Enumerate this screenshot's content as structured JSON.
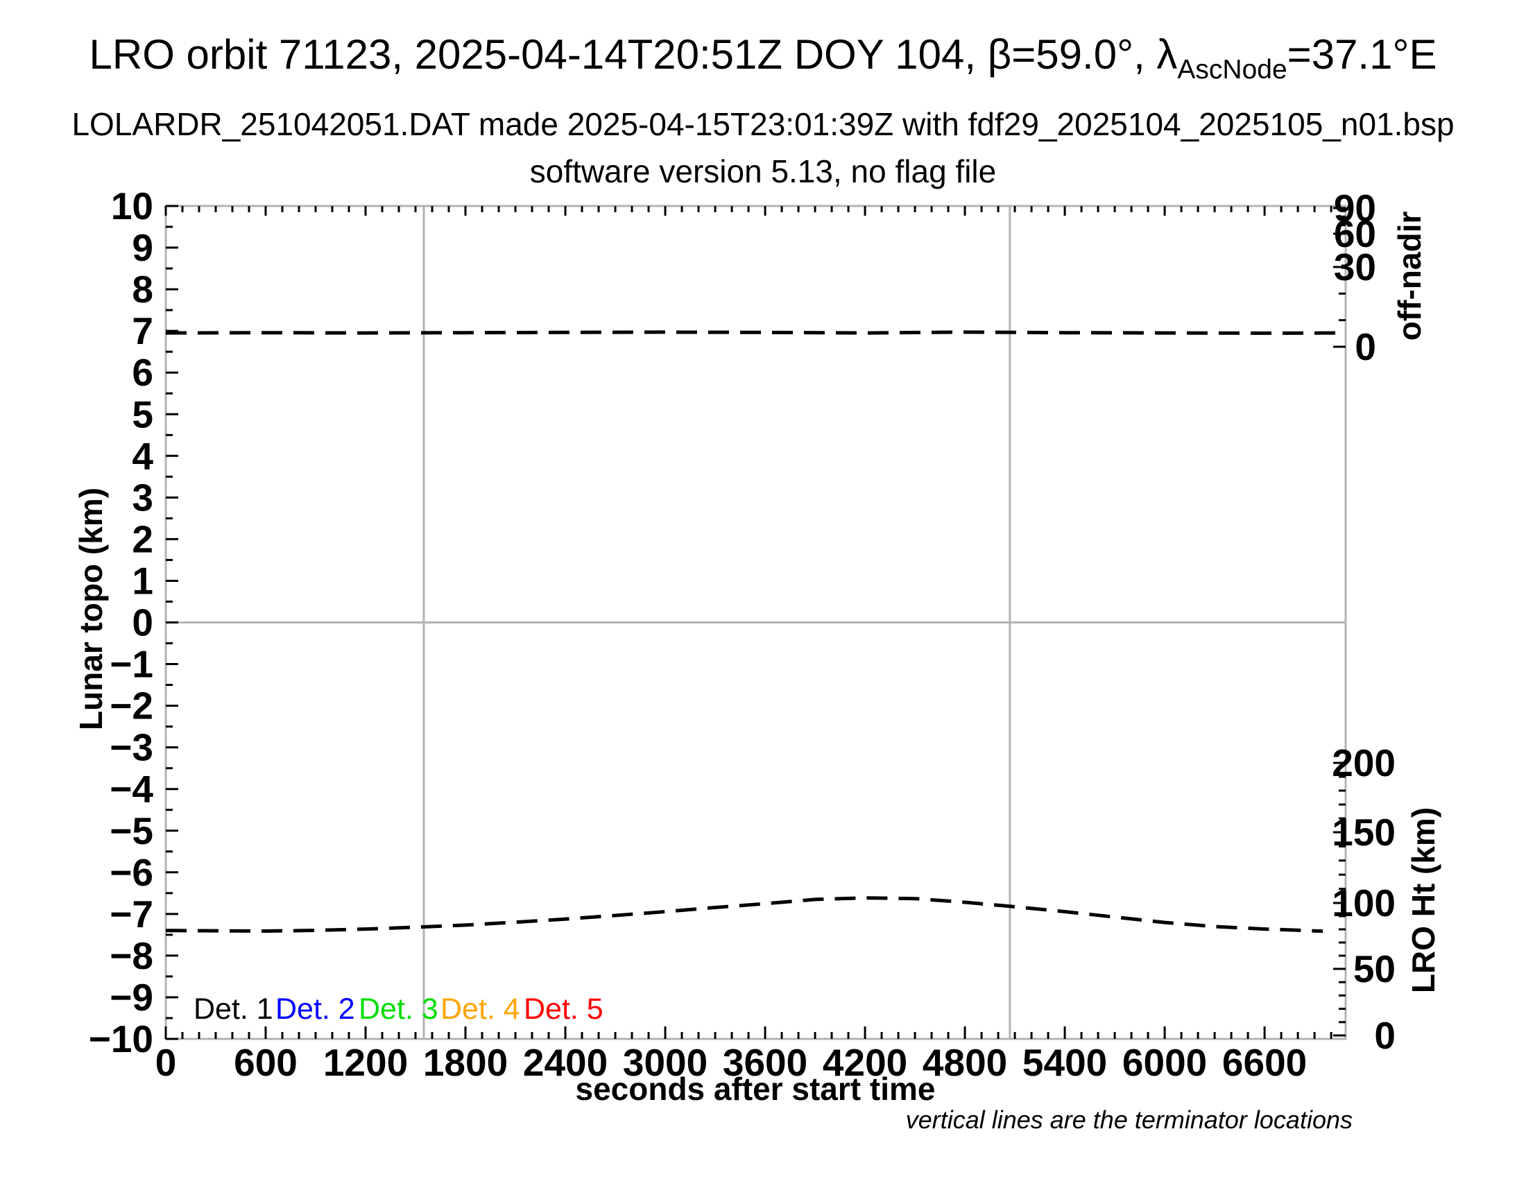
{
  "title": {
    "part1": "LRO orbit 71123, 2025-04-14T20:51Z DOY 104, β=59.0°, λ",
    "subscript": "AscNode",
    "part2": "=37.1°E"
  },
  "subtitle1": "LOLARDR_251042051.DAT made 2025-04-15T23:01:39Z with fdf29_2025104_2025105_n01.bsp",
  "subtitle2": "software version 5.13, no flag file",
  "chart_data": {
    "type": "line",
    "x_axis": {
      "label": "seconds after start time",
      "range": [
        0,
        7087
      ],
      "major_tick_interval": 600,
      "minor_tick_interval": 100,
      "major_ticks": [
        0,
        600,
        1200,
        1800,
        2400,
        3000,
        3600,
        4200,
        4800,
        5400,
        6000,
        6600
      ]
    },
    "y_axis_left": {
      "label": "Lunar topo (km)",
      "range": [
        -10,
        10
      ],
      "major_tick_interval": 1,
      "minor_tick_interval": 0.5
    },
    "y_axis_right_top": {
      "label": "off-nadir",
      "major_ticks": [
        90,
        60,
        30,
        0
      ],
      "minor_ticks": [
        80,
        70,
        50,
        40,
        20,
        10
      ],
      "scale": "nonlinear"
    },
    "y_axis_right_bottom": {
      "label": "LRO Ht (km)",
      "range": [
        0,
        210
      ],
      "major_ticks": [
        200,
        150,
        100,
        50,
        0
      ],
      "minor_tick_interval": 10
    },
    "series": [
      {
        "name": "spacecraft off-nadir angle",
        "axis": "off_nadir",
        "unit": "deg",
        "line_style": "dashed",
        "color": "#000000",
        "x": [
          0,
          600,
          1200,
          1800,
          2400,
          3000,
          3600,
          4200,
          4800,
          5400,
          6000,
          6600,
          7070
        ],
        "values": [
          5.2,
          5.3,
          5.2,
          5.3,
          5.4,
          5.5,
          5.4,
          5.2,
          5.5,
          5.3,
          5.2,
          5.1,
          5.2
        ]
      },
      {
        "name": "LRO height above surface",
        "axis": "lro_ht",
        "unit": "km",
        "line_style": "dashed",
        "color": "#000000",
        "x": [
          0,
          300,
          600,
          900,
          1200,
          1500,
          1800,
          2100,
          2400,
          2700,
          3000,
          3300,
          3600,
          3900,
          4200,
          4500,
          4800,
          5070,
          5400,
          5700,
          6000,
          6300,
          6600,
          6800,
          6950
        ],
        "values": [
          79.1,
          78.9,
          78.7,
          79.2,
          80.2,
          81.6,
          83.2,
          85.4,
          87.8,
          90.5,
          93.4,
          96.6,
          99.5,
          102.5,
          103.6,
          103.1,
          100.5,
          97.5,
          93.4,
          89.3,
          85.2,
          82.1,
          80.2,
          79.3,
          78.6
        ]
      }
    ],
    "terminator_lines_x": [
      1550,
      5070
    ],
    "zero_topo_gridline": 0,
    "legend": {
      "items": [
        {
          "label": "Det. 1",
          "color": "#000000"
        },
        {
          "label": "Det. 2",
          "color": "#0000ff"
        },
        {
          "label": "Det. 3",
          "color": "#00dd00"
        },
        {
          "label": "Det. 4",
          "color": "#ffa500"
        },
        {
          "label": "Det. 5",
          "color": "#ff0000"
        }
      ],
      "position": "bottom-left inside"
    },
    "note": "vertical lines are the terminator locations",
    "frame_color": "#b3b3b3",
    "line_color": "#000000",
    "grid": true
  }
}
